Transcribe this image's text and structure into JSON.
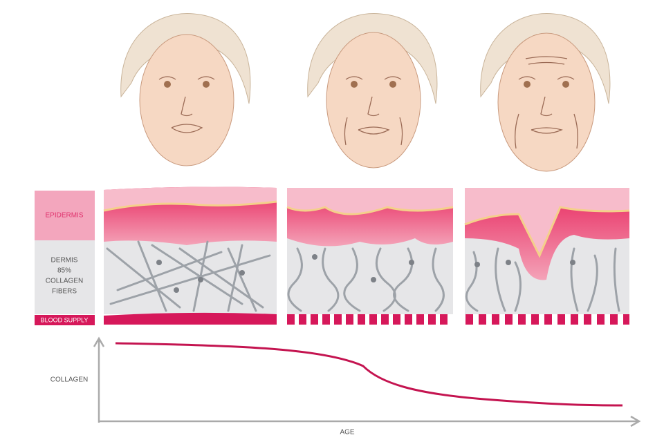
{
  "labels": {
    "epidermis": "EPIDERMIS",
    "dermis": [
      "DERMIS",
      "85%",
      "COLLAGEN",
      "FIBERS"
    ],
    "blood_supply": "BLOOD SUPPLY"
  },
  "graph": {
    "y_axis": "COLLAGEN",
    "x_axis": "AGE"
  }
}
